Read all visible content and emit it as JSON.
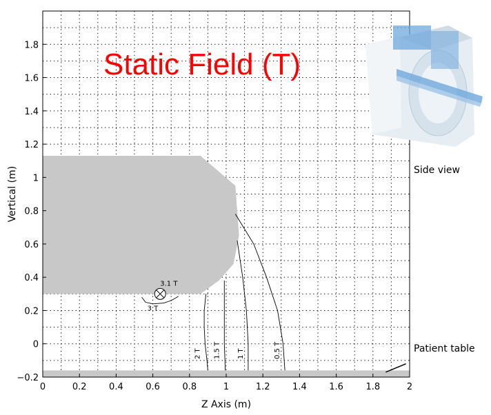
{
  "chart_data": {
    "type": "line",
    "title": "Static Field (T)",
    "xlabel": "Z Axis (m)",
    "ylabel": "Vertical (m)",
    "xlim": [
      0,
      2
    ],
    "ylim": [
      -0.2,
      2.0
    ],
    "x_ticks": [
      0,
      0.2,
      0.4,
      0.6,
      0.8,
      1,
      1.2,
      1.4,
      1.6,
      1.8,
      2
    ],
    "y_ticks": [
      -0.2,
      0,
      0.2,
      0.4,
      0.6,
      0.8,
      1,
      1.2,
      1.4,
      1.6,
      1.8
    ],
    "grid": "dotted",
    "magnet_region": [
      [
        0,
        1.13
      ],
      [
        0.86,
        1.13
      ],
      [
        1.05,
        0.95
      ],
      [
        1.07,
        0.65
      ],
      [
        1.04,
        0.48
      ],
      [
        0.96,
        0.38
      ],
      [
        0.86,
        0.3
      ],
      [
        0,
        0.3
      ]
    ],
    "table_band": [
      -0.2,
      -0.16
    ],
    "max_marker": {
      "x": 0.64,
      "y": 0.3,
      "label": "3.1 T"
    },
    "contours": [
      {
        "name": "3 T",
        "points": [
          [
            0.54,
            0.28
          ],
          [
            0.56,
            0.25
          ],
          [
            0.6,
            0.24
          ],
          [
            0.66,
            0.245
          ],
          [
            0.7,
            0.26
          ],
          [
            0.74,
            0.285
          ]
        ]
      },
      {
        "name": "2 T",
        "points": [
          [
            0.89,
            0.3
          ],
          [
            0.88,
            0.2
          ],
          [
            0.88,
            0.1
          ],
          [
            0.885,
            0.0
          ],
          [
            0.895,
            -0.1
          ],
          [
            0.9,
            -0.16
          ]
        ]
      },
      {
        "name": "1.5 T",
        "points": [
          [
            0.99,
            0.38
          ],
          [
            0.99,
            0.2
          ],
          [
            0.99,
            0.0
          ],
          [
            0.995,
            -0.16
          ]
        ]
      },
      {
        "name": "1 T",
        "points": [
          [
            1.06,
            0.62
          ],
          [
            1.09,
            0.4
          ],
          [
            1.11,
            0.2
          ],
          [
            1.12,
            0.0
          ],
          [
            1.12,
            -0.16
          ]
        ]
      },
      {
        "name": "0.5 T",
        "points": [
          [
            1.05,
            0.78
          ],
          [
            1.15,
            0.6
          ],
          [
            1.22,
            0.4
          ],
          [
            1.28,
            0.2
          ],
          [
            1.31,
            0.0
          ],
          [
            1.32,
            -0.16
          ]
        ]
      }
    ],
    "annotations": [
      "Side view",
      "Patient table"
    ],
    "table_mark": [
      [
        1.87,
        -0.17
      ],
      [
        1.98,
        -0.12
      ]
    ]
  },
  "colors": {
    "title": "#ff0000",
    "magnet": "#c8c8c8",
    "table": "#c8c8c8",
    "grid": "#000000",
    "inset_body": "#dde6ec",
    "inset_bore": "#6fa8dc"
  },
  "icons": {
    "max_marker": "circled-x-icon",
    "inset": "mri-scanner-icon"
  }
}
